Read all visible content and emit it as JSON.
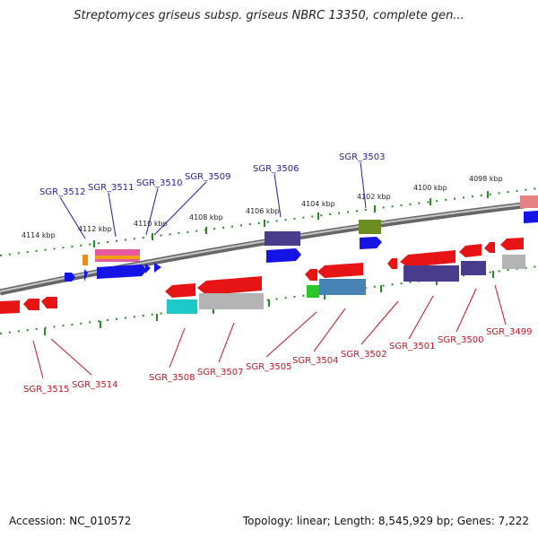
{
  "header": {
    "title": "Streptomyces griseus subsp. griseus NBRC 13350, complete gen..."
  },
  "footer": {
    "accession": "Accession: NC_010572",
    "topology": "Topology: linear; Length: 8,545,929 bp; Genes: 7,222"
  },
  "scale": {
    "ticks": [
      "4114 kbp",
      "4112 kbp",
      "4110 kbp",
      "4108 kbp",
      "4106 kbp",
      "4104 kbp",
      "4102 kbp",
      "4100 kbp",
      "4098 kbp"
    ]
  },
  "genes": {
    "plus_labels": [
      "SGR_3512",
      "SGR_3511",
      "SGR_3510",
      "SGR_3509",
      "SGR_3506",
      "SGR_3503"
    ],
    "minus_labels": [
      "SGR_3515",
      "SGR_3514",
      "SGR_3508",
      "SGR_3507",
      "SGR_3505",
      "SGR_3504",
      "SGR_3502",
      "SGR_3501",
      "SGR_3500",
      "SGR_3499"
    ]
  },
  "colors": {
    "backbone": "#8c8c8c",
    "plus_strand": "#1414e6",
    "minus_strand": "#e61414",
    "tick": "#2a8a2a",
    "label_plus": "#1e1ea8",
    "label_minus": "#c8141e"
  }
}
